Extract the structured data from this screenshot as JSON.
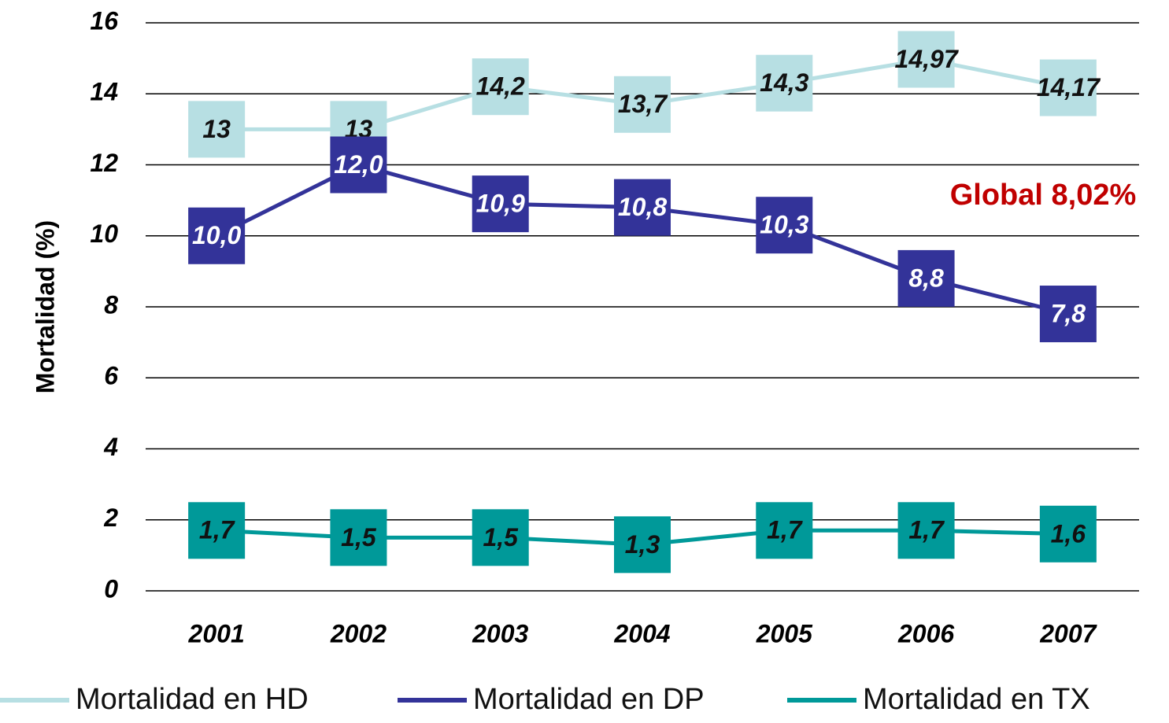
{
  "chart_data": {
    "type": "line",
    "y_label": "Mortalidad (%)",
    "annotation": "Global 8,02%",
    "categories": [
      "2001",
      "2002",
      "2003",
      "2004",
      "2005",
      "2006",
      "2007"
    ],
    "series": [
      {
        "name": "Mortalidad en HD",
        "color": "#b7dfe3",
        "values": [
          13,
          13,
          14.2,
          13.7,
          14.3,
          14.97,
          14.17
        ],
        "value_labels": [
          "13",
          "13",
          "14,2",
          "13,7",
          "14,3",
          "14,97",
          "14,17"
        ]
      },
      {
        "name": "Mortalidad en DP",
        "color": "#333399",
        "values": [
          10.0,
          12.0,
          10.9,
          10.8,
          10.3,
          8.8,
          7.8
        ],
        "value_labels": [
          "10,0",
          "12,0",
          "10,9",
          "10,8",
          "10,3",
          "8,8",
          "7,8"
        ]
      },
      {
        "name": "Mortalidad en TX",
        "color": "#009999",
        "values": [
          1.7,
          1.5,
          1.5,
          1.3,
          1.7,
          1.7,
          1.6
        ],
        "value_labels": [
          "1,7",
          "1,5",
          "1,5",
          "1,3",
          "1,7",
          "1,7",
          "1,6"
        ]
      }
    ],
    "ylim": [
      0,
      16
    ],
    "yticks": [
      0,
      2,
      4,
      6,
      8,
      10,
      12,
      14,
      16
    ],
    "grid": true,
    "legend": "bottom"
  }
}
